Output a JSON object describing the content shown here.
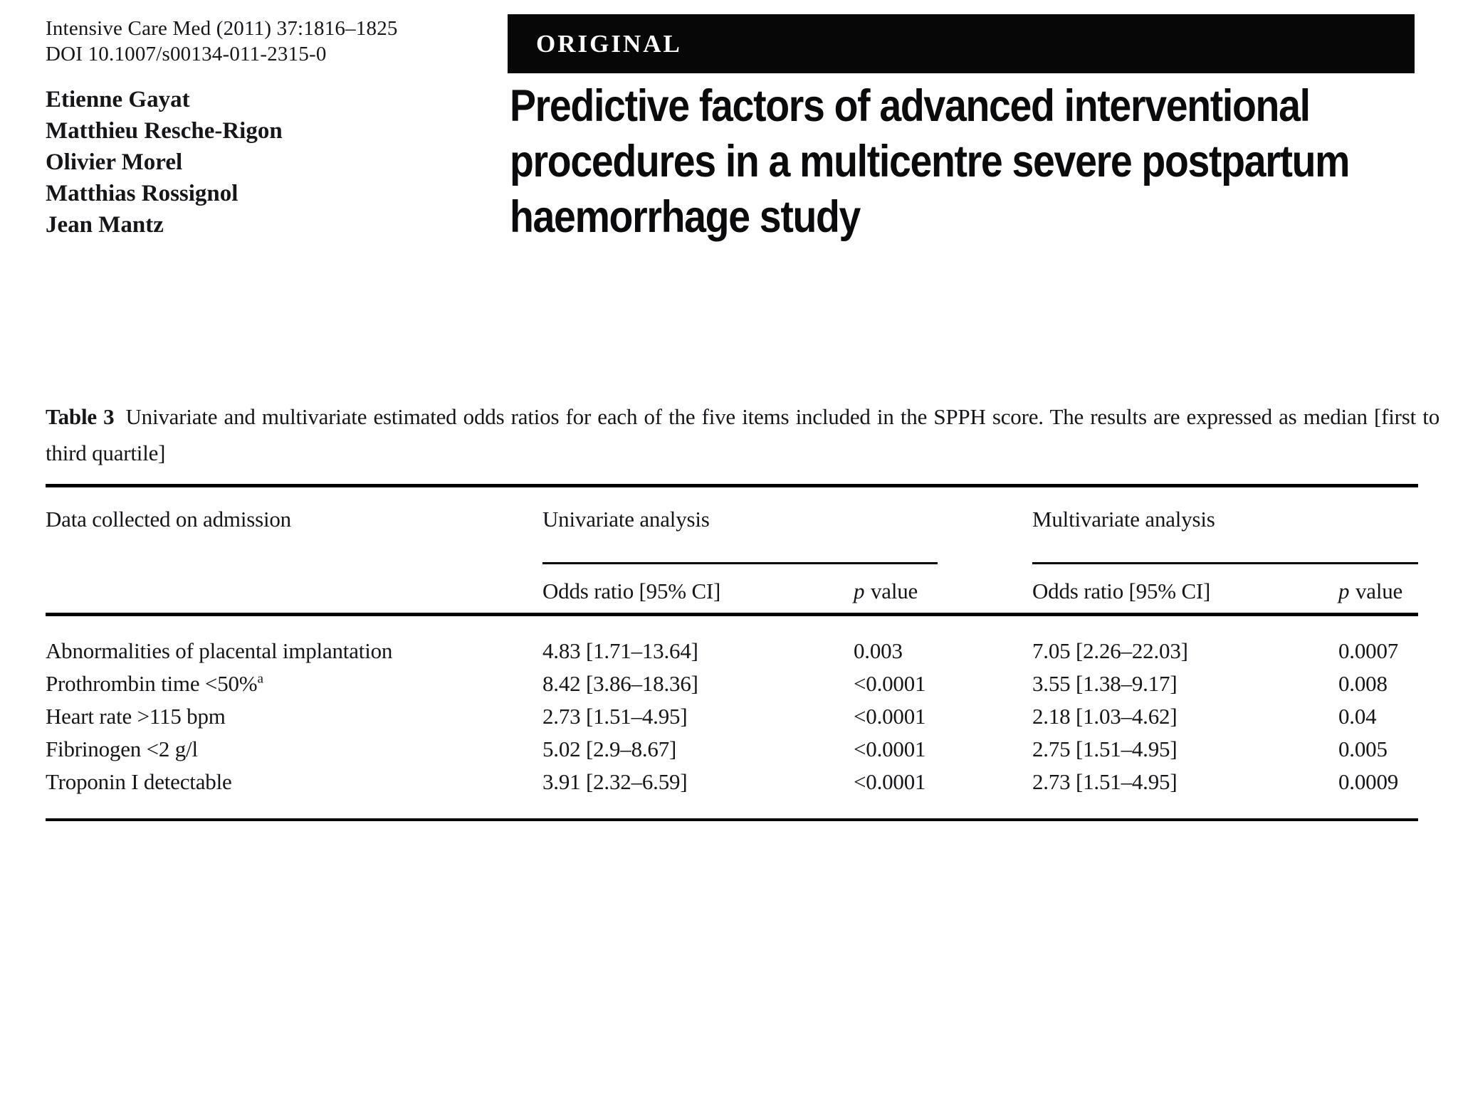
{
  "colors": {
    "banner_background": "#070707",
    "text": "#15151a",
    "rule": "#000000"
  },
  "header": {
    "journal_line": "Intensive Care Med (2011) 37:1816–1825",
    "doi_line": "DOI 10.1007/s00134-011-2315-0",
    "authors": [
      "Etienne Gayat",
      "Matthieu Resche-Rigon",
      "Olivier Morel",
      "Matthias Rossignol",
      "Jean Mantz"
    ],
    "section_label": "ORIGINAL",
    "title_lines": [
      "Predictive factors of advanced interventional",
      "procedures in a multicentre severe postpartum",
      "haemorrhage study"
    ]
  },
  "caption": {
    "label": "Table 3",
    "text": "Univariate and multivariate estimated odds ratios for each of the five items included in the SPPH score. The results are expressed as median [first to third quartile]"
  },
  "table": {
    "col1_header": "Data collected on admission",
    "group_univariate": "Univariate analysis",
    "group_multivariate": "Multivariate analysis",
    "sub_odds_ratio": "Odds ratio [95% CI]",
    "sub_p_italic": "p",
    "sub_p_word": "value",
    "rows": [
      {
        "label": "Abnormalities of placental implantation",
        "sup": "",
        "uni_or": "4.83 [1.71–13.64]",
        "uni_p": "0.003",
        "multi_or": "7.05 [2.26–22.03]",
        "multi_p": "0.0007"
      },
      {
        "label": "Prothrombin time <50%",
        "sup": "a",
        "uni_or": "8.42 [3.86–18.36]",
        "uni_p": "<0.0001",
        "multi_or": "3.55 [1.38–9.17]",
        "multi_p": "0.008"
      },
      {
        "label": "Heart rate >115 bpm",
        "sup": "",
        "uni_or": "2.73 [1.51–4.95]",
        "uni_p": "<0.0001",
        "multi_or": "2.18 [1.03–4.62]",
        "multi_p": "0.04"
      },
      {
        "label": "Fibrinogen <2 g/l",
        "sup": "",
        "uni_or": "5.02 [2.9–8.67]",
        "uni_p": "<0.0001",
        "multi_or": "2.75 [1.51–4.95]",
        "multi_p": "0.005"
      },
      {
        "label": "Troponin I detectable",
        "sup": "",
        "uni_or": "3.91 [2.32–6.59]",
        "uni_p": "<0.0001",
        "multi_or": "2.73 [1.51–4.95]",
        "multi_p": "0.0009"
      }
    ]
  }
}
